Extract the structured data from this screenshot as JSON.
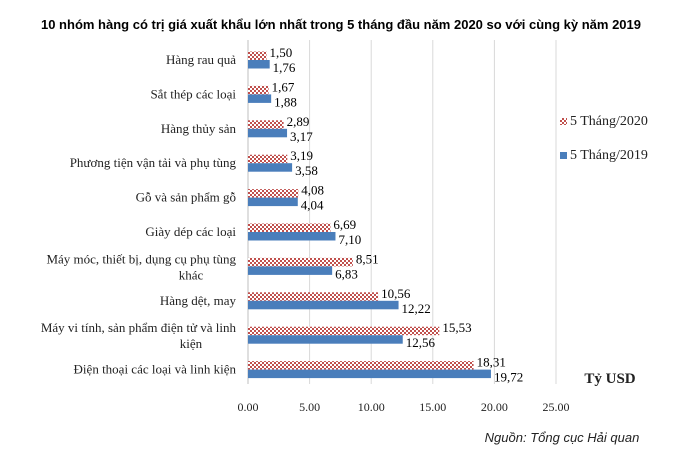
{
  "chart_data": {
    "type": "bar",
    "orientation": "horizontal",
    "title": "10 nhóm hàng có trị giá xuất khẩu lớn nhất trong 5 tháng đầu năm 2020 so với cùng kỳ năm 2019",
    "categories": [
      [
        "Hàng rau quả"
      ],
      [
        "Sắt thép các loại"
      ],
      [
        "Hàng thủy sản"
      ],
      [
        "Phương tiện vận tải và phụ tùng"
      ],
      [
        "Gỗ và sản phẩm gỗ"
      ],
      [
        "Giày dép các loại"
      ],
      [
        "Máy móc, thiết bị, dụng cụ phụ tùng",
        "khác"
      ],
      [
        "Hàng dệt, may"
      ],
      [
        "Máy vi tính, sản phẩm điện tử và linh",
        "kiện"
      ],
      [
        "Điện thoại các loại và linh kiện"
      ]
    ],
    "series": [
      {
        "name": "5 Tháng/2020",
        "values": [
          1.5,
          1.67,
          2.89,
          3.19,
          4.08,
          6.69,
          8.51,
          10.56,
          15.53,
          18.31
        ],
        "labels": [
          "1,50",
          "1,67",
          "2,89",
          "3,19",
          "4,08",
          "6,69",
          "8,51",
          "10,56",
          "15,53",
          "18,31"
        ],
        "pattern": "checkered",
        "color": "#c0504d"
      },
      {
        "name": "5 Tháng/2019",
        "values": [
          1.76,
          1.88,
          3.17,
          3.58,
          4.04,
          7.1,
          6.83,
          12.22,
          12.56,
          19.72
        ],
        "labels": [
          "1,76",
          "1,88",
          "3,17",
          "3,58",
          "4,04",
          "7,10",
          "6,83",
          "12,22",
          "12,56",
          "19,72"
        ],
        "pattern": "solid",
        "color": "#4a7ebb"
      }
    ],
    "xlim": [
      0,
      25
    ],
    "xticks": [
      0,
      5,
      10,
      15,
      20,
      25
    ],
    "xtick_labels": [
      "0.00",
      "5.00",
      "10.00",
      "15.00",
      "20.00",
      "25.00"
    ],
    "grid": "vertical",
    "legend_position": "right",
    "unit_label": "Tỷ USD",
    "source": "Nguồn: Tổng cục Hải quan"
  }
}
